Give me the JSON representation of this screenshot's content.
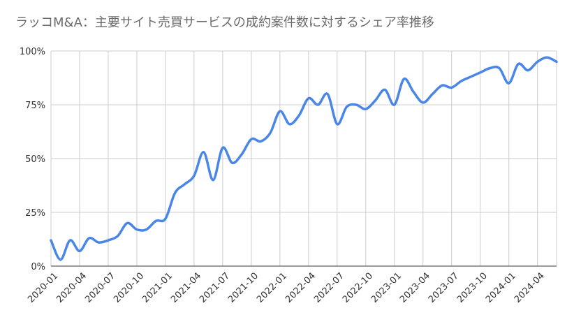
{
  "chart_data": {
    "type": "line",
    "title": "ラッコM&A：主要サイト売買サービスの成約案件数に対するシェア率推移",
    "xlabel": "",
    "ylabel": "",
    "ylim": [
      0,
      100
    ],
    "yticks": [
      "0%",
      "25%",
      "50%",
      "75%",
      "100%"
    ],
    "ytick_values": [
      0,
      25,
      50,
      75,
      100
    ],
    "grid": true,
    "legend": "none",
    "color": "#4a86e8",
    "x_tick_labels": [
      "2020-01",
      "2020-04",
      "2020-07",
      "2020-10",
      "2021-01",
      "2021-04",
      "2021-07",
      "2021-10",
      "2022-01",
      "2022-04",
      "2022-07",
      "2022-10",
      "2023-01",
      "2023-04",
      "2023-07",
      "2023-10",
      "2024-01",
      "2024-04"
    ],
    "x": [
      "2020-01",
      "2020-02",
      "2020-03",
      "2020-04",
      "2020-05",
      "2020-06",
      "2020-07",
      "2020-08",
      "2020-09",
      "2020-10",
      "2020-11",
      "2020-12",
      "2021-01",
      "2021-02",
      "2021-03",
      "2021-04",
      "2021-05",
      "2021-06",
      "2021-07",
      "2021-08",
      "2021-09",
      "2021-10",
      "2021-11",
      "2021-12",
      "2022-01",
      "2022-02",
      "2022-03",
      "2022-04",
      "2022-05",
      "2022-06",
      "2022-07",
      "2022-08",
      "2022-09",
      "2022-10",
      "2022-11",
      "2022-12",
      "2023-01",
      "2023-02",
      "2023-03",
      "2023-04",
      "2023-05",
      "2023-06",
      "2023-07",
      "2023-08",
      "2023-09",
      "2023-10",
      "2023-11",
      "2023-12",
      "2024-01",
      "2024-02",
      "2024-03",
      "2024-04",
      "2024-05",
      "2024-06"
    ],
    "values": [
      12,
      3,
      12,
      7,
      13,
      11,
      12,
      14,
      20,
      17,
      17,
      21,
      22,
      34,
      38,
      42,
      53,
      40,
      55,
      48,
      52,
      59,
      58,
      62,
      72,
      66,
      70,
      78,
      75,
      80,
      66,
      74,
      75,
      73,
      77,
      82,
      75,
      87,
      81,
      76,
      80,
      84,
      83,
      86,
      88,
      90,
      92,
      92,
      85,
      94,
      91,
      95,
      97,
      95
    ]
  }
}
